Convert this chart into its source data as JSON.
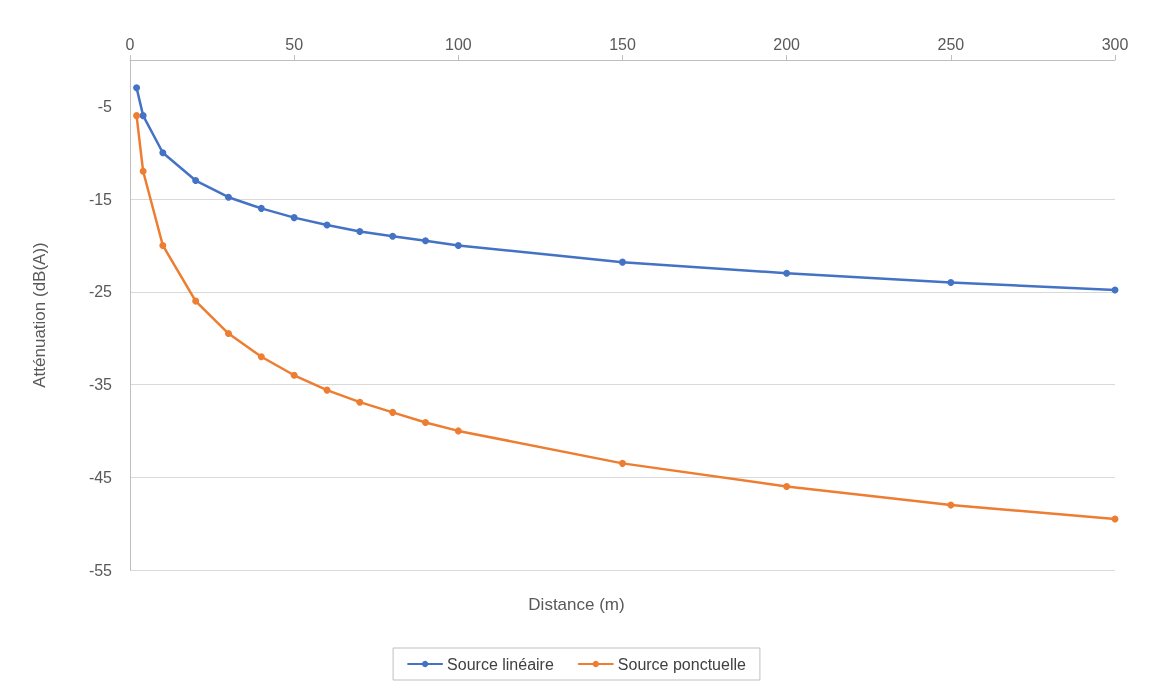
{
  "chart_data": {
    "type": "line",
    "xlabel": "Distance (m)",
    "ylabel": "Atténuation (dB(A))",
    "x": [
      2,
      4,
      10,
      20,
      30,
      40,
      50,
      60,
      70,
      80,
      90,
      100,
      150,
      200,
      250,
      300
    ],
    "series": [
      {
        "name": "Source linéaire",
        "color": "#4472c4",
        "values": [
          -3,
          -6,
          -10,
          -13,
          -14.8,
          -16,
          -17,
          -17.8,
          -18.5,
          -19,
          -19.5,
          -20,
          -21.8,
          -23,
          -24,
          -24.8
        ]
      },
      {
        "name": "Source ponctuelle",
        "color": "#ed7d31",
        "values": [
          -6,
          -12,
          -20,
          -26,
          -29.5,
          -32,
          -34,
          -35.6,
          -36.9,
          -38,
          -39.1,
          -40,
          -43.5,
          -46,
          -48,
          -49.5
        ]
      }
    ],
    "xlim": [
      0,
      300
    ],
    "xticks": [
      0,
      50,
      100,
      150,
      200,
      250,
      300
    ],
    "ylim": [
      -55,
      0
    ],
    "yticks": [
      -55,
      -45,
      -35,
      -25,
      -15,
      -5
    ],
    "grid": "y",
    "legend": "bottom",
    "marker": "circle",
    "line_style": "solid"
  }
}
